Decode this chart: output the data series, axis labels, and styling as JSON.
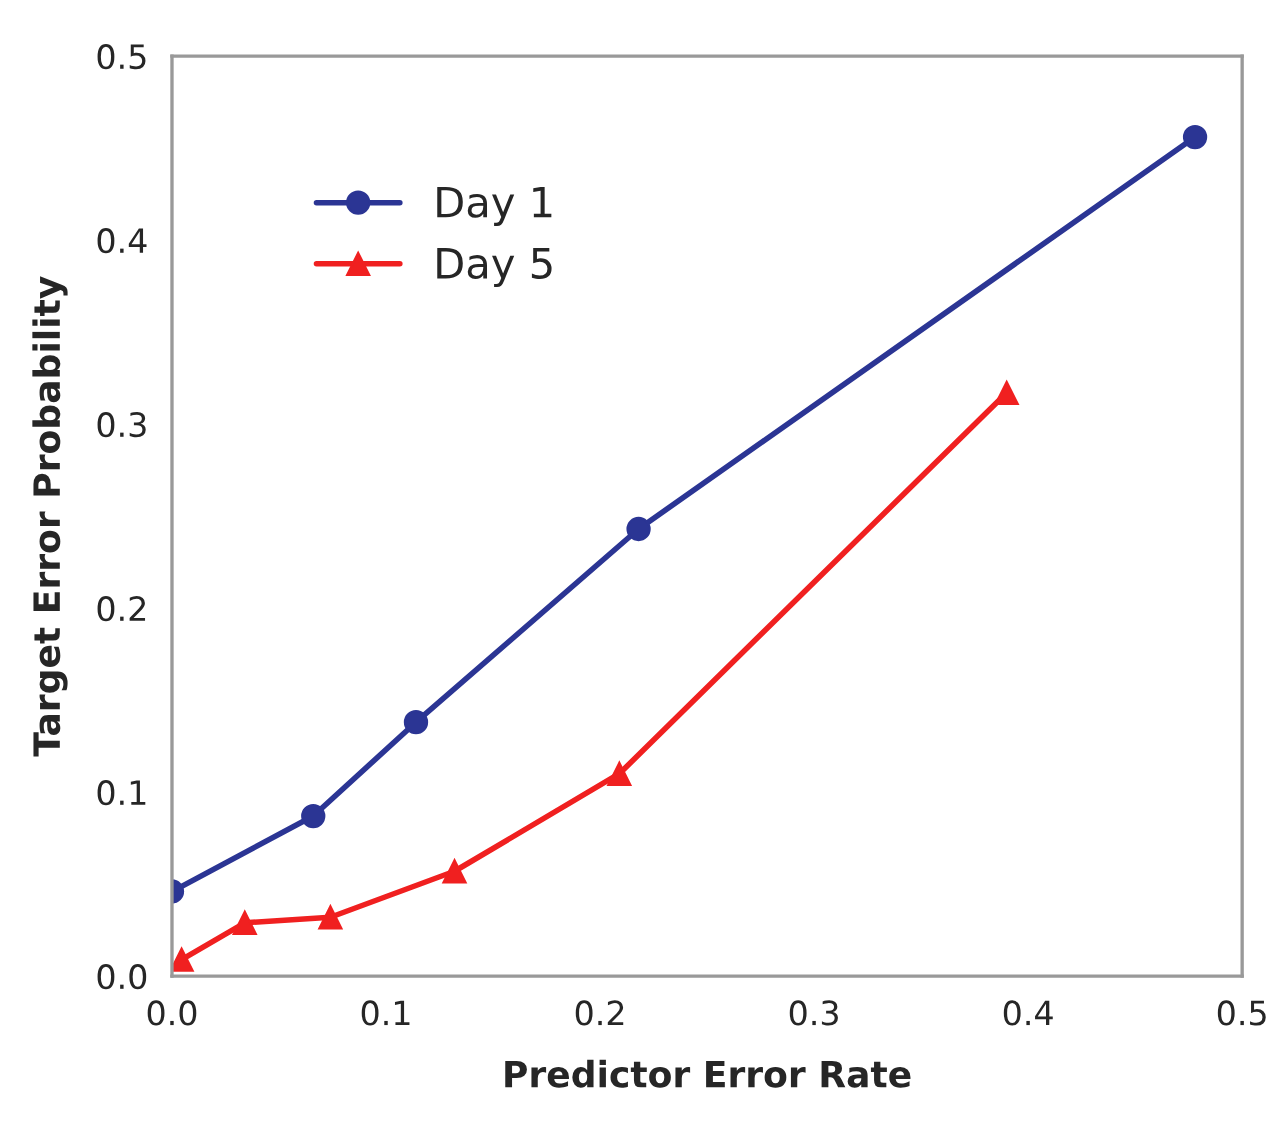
{
  "chart_data": {
    "type": "line",
    "xlabel": "Predictor Error Rate",
    "ylabel": "Target Error Probability",
    "xlim": [
      0,
      0.5
    ],
    "xticks": [
      {
        "value": 0,
        "label": "0.0"
      },
      0.1,
      0.2,
      0.3,
      0.4,
      0.5
    ],
    "ylim": [
      0,
      0.5
    ],
    "yticks": [
      {
        "value": 0,
        "label": "0.0"
      },
      0.1,
      0.2,
      0.3,
      0.4,
      0.5
    ],
    "grid": false,
    "legend": "top left",
    "series": [
      {
        "name": "Day 1",
        "color": "#2b3594",
        "marker": "circle",
        "x": [
          0.0,
          0.066,
          0.114,
          0.218,
          0.478
        ],
        "values": [
          0.046,
          0.087,
          0.138,
          0.243,
          0.456
        ]
      },
      {
        "name": "Day 5",
        "color": "#f02020",
        "marker": "triangle",
        "x": [
          0.0045,
          0.034,
          0.074,
          0.132,
          0.209,
          0.39
        ],
        "values": [
          0.009,
          0.029,
          0.032,
          0.057,
          0.11,
          0.317
        ]
      }
    ]
  }
}
